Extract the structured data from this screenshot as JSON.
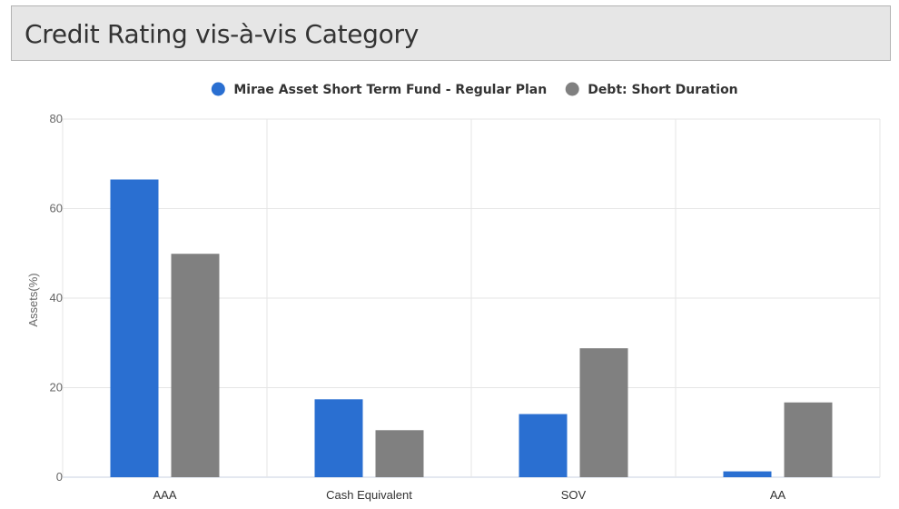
{
  "header": {
    "title": "Credit Rating vis-à-vis Category"
  },
  "chart_data": {
    "type": "bar",
    "title": "",
    "xlabel": "",
    "ylabel": "Assets(%)",
    "ylim": [
      0,
      80
    ],
    "yticks": [
      0,
      20,
      40,
      60,
      80
    ],
    "grid": true,
    "legend_position": "top-center",
    "categories": [
      "AAA",
      "Cash Equivalent",
      "SOV",
      "AA"
    ],
    "series": [
      {
        "name": "Mirae Asset Short Term Fund - Regular Plan",
        "color": "#2a6fd1",
        "values": [
          66.5,
          17.4,
          14.1,
          1.3
        ]
      },
      {
        "name": "Debt: Short Duration",
        "color": "#808080",
        "values": [
          49.9,
          10.5,
          28.8,
          16.7
        ]
      }
    ]
  }
}
